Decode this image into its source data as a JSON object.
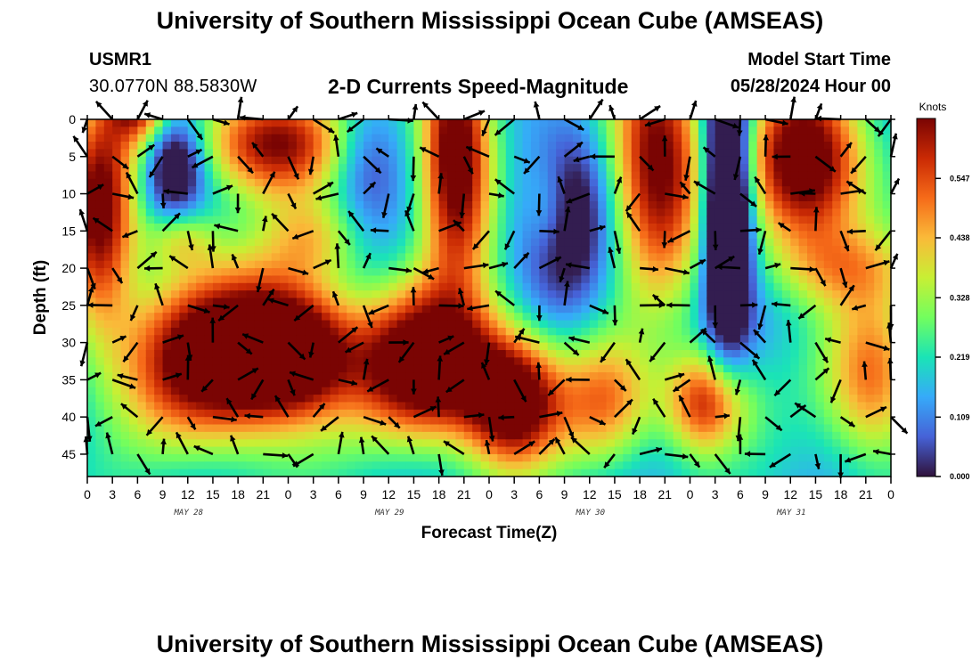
{
  "header": {
    "title_top": "University of Southern Mississippi Ocean Cube (AMSEAS)",
    "title_bottom": "University of Southern Mississippi Ocean Cube (AMSEAS)",
    "station": "USMR1",
    "coords": "30.0770N  88.5830W",
    "plot_title": "2-D Currents Speed-Magnitude",
    "model_start_label": "Model Start Time",
    "model_start_value": "05/28/2024 Hour 00"
  },
  "colors": {
    "arrow": "#000000",
    "colormap": [
      "#30123b",
      "#4662d7",
      "#36aaf9",
      "#1ae4b6",
      "#72fe5e",
      "#c8ef34",
      "#faba39",
      "#f66b19",
      "#ca2a04",
      "#7a0403"
    ]
  },
  "chart_data": {
    "type": "heatmap",
    "title": "2-D Currents Speed-Magnitude",
    "xlabel": "Forecast Time(Z)",
    "ylabel": "Depth (ft)",
    "colorbar_unit": "Knots",
    "colorbar_ticks": [
      "0.000",
      "0.109",
      "0.219",
      "0.328",
      "0.438",
      "0.547"
    ],
    "colorbar_range": [
      0,
      0.657
    ],
    "xlim": [
      0,
      96
    ],
    "ylim": [
      0,
      48
    ],
    "y_ticks": [
      0,
      5,
      10,
      15,
      20,
      25,
      30,
      35,
      40,
      45
    ],
    "x_tick_labels": [
      "0",
      "3",
      "6",
      "9",
      "12",
      "15",
      "18",
      "21",
      "0",
      "3",
      "6",
      "9",
      "12",
      "15",
      "18",
      "21",
      "0",
      "3",
      "6",
      "9",
      "12",
      "15",
      "18",
      "21",
      "0",
      "3",
      "6",
      "9",
      "12",
      "15",
      "18",
      "21",
      "0"
    ],
    "day_labels": [
      {
        "label": "MAY 28",
        "hour": 12
      },
      {
        "label": "MAY 29",
        "hour": 36
      },
      {
        "label": "MAY 30",
        "hour": 60
      },
      {
        "label": "MAY 31",
        "hour": 84
      }
    ],
    "arrow_times": [
      0,
      3,
      6,
      9,
      12,
      15,
      18,
      21,
      24,
      27,
      30,
      33,
      36,
      39,
      42,
      45,
      48,
      51,
      54,
      57,
      60,
      63,
      66,
      69,
      72,
      75,
      78,
      81,
      84,
      87,
      90,
      93,
      96
    ],
    "arrow_depths": [
      0,
      5,
      10,
      15,
      20,
      25,
      30,
      35,
      40,
      45
    ],
    "speed_blobs": [
      {
        "t": 1.5,
        "d": 12,
        "st": 3,
        "sd": 11,
        "a": 0.5
      },
      {
        "t": 6,
        "d": -3,
        "st": 2.5,
        "sd": 4,
        "a": 0.45
      },
      {
        "t": 22,
        "d": 3,
        "st": 6,
        "sd": 5,
        "a": 0.5
      },
      {
        "t": 16,
        "d": 32,
        "st": 8,
        "sd": 8,
        "a": 0.63
      },
      {
        "t": 25,
        "d": 31,
        "st": 5,
        "sd": 6,
        "a": 0.45
      },
      {
        "t": 41,
        "d": 33,
        "st": 6,
        "sd": 7,
        "a": 0.65
      },
      {
        "t": 51,
        "d": 38,
        "st": 4,
        "sd": 6,
        "a": 0.55
      },
      {
        "t": 44,
        "d": 4,
        "st": 3,
        "sd": 12,
        "a": 0.6
      },
      {
        "t": 68,
        "d": 5,
        "st": 4,
        "sd": 12,
        "a": 0.55
      },
      {
        "t": 86,
        "d": 6,
        "st": 5,
        "sd": 8,
        "a": 0.6
      },
      {
        "t": 94,
        "d": 35,
        "st": 4,
        "sd": 8,
        "a": 0.35
      },
      {
        "t": 62,
        "d": 38,
        "st": 4,
        "sd": 6,
        "a": 0.3
      },
      {
        "t": 74,
        "d": 38,
        "st": 3.5,
        "sd": 5,
        "a": 0.45
      },
      {
        "t": 11,
        "d": 16,
        "st": 3,
        "sd": 3,
        "a": 0.2
      },
      {
        "t": 27,
        "d": 16,
        "st": 4,
        "sd": 4,
        "a": 0.2
      },
      {
        "t": 90,
        "d": 20,
        "st": 6,
        "sd": 4,
        "a": 0.2
      },
      {
        "t": 55,
        "d": 12,
        "st": 2,
        "sd": 5,
        "a": 0.15
      }
    ],
    "calm_zones": [
      {
        "t": 76.5,
        "d": 10,
        "st": 2,
        "sd": 14,
        "a": 0.6
      },
      {
        "t": 57,
        "d": 12,
        "st": 4,
        "sd": 9,
        "a": 0.25
      },
      {
        "t": 10.5,
        "d": 6,
        "st": 2.5,
        "sd": 5,
        "a": 0.3
      },
      {
        "t": 33,
        "d": 5,
        "st": 3,
        "sd": 6,
        "a": 0.15
      }
    ]
  }
}
